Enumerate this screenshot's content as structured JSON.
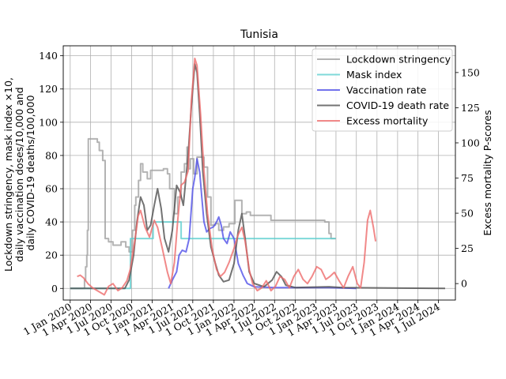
{
  "chart_data": {
    "type": "line",
    "title": "Tunisia",
    "ylabel": [
      "Lockdown stringency, mask index ×10,",
      "daily vaccination doses/10,000 and",
      "daily COVID-19 deaths/100,000"
    ],
    "y2label": "Excess mortality P-scores",
    "ylim": [
      -7,
      146
    ],
    "y2lim": [
      -11.7,
      169
    ],
    "xlim": [
      "2019-12-01",
      "2024-09-15"
    ],
    "y_ticks": [
      0,
      20,
      40,
      60,
      80,
      100,
      120,
      140
    ],
    "y2_ticks": [
      0,
      25,
      50,
      75,
      100,
      125,
      150
    ],
    "x_ticks": [
      {
        "date": "2020-01-01",
        "label": "1 Jan 2020"
      },
      {
        "date": "2020-04-01",
        "label": "1 Apr 2020"
      },
      {
        "date": "2020-07-01",
        "label": "1 Jul 2020"
      },
      {
        "date": "2020-10-01",
        "label": "1 Oct 2020"
      },
      {
        "date": "2021-01-01",
        "label": "1 Jan 2021"
      },
      {
        "date": "2021-04-01",
        "label": "1 Apr 2021"
      },
      {
        "date": "2021-07-01",
        "label": "1 Jul 2021"
      },
      {
        "date": "2021-10-01",
        "label": "1 Oct 2021"
      },
      {
        "date": "2022-01-01",
        "label": "1 Jan 2022"
      },
      {
        "date": "2022-04-01",
        "label": "1 Apr 2022"
      },
      {
        "date": "2022-07-01",
        "label": "1 Jul 2022"
      },
      {
        "date": "2022-10-01",
        "label": "1 Oct 2022"
      },
      {
        "date": "2023-01-01",
        "label": "1 Jan 2023"
      },
      {
        "date": "2023-04-01",
        "label": "1 Apr 2023"
      },
      {
        "date": "2023-07-01",
        "label": "1 Jul 2023"
      },
      {
        "date": "2023-10-01",
        "label": "1 Oct 2023"
      },
      {
        "date": "2024-01-01",
        "label": "1 Jan 2024"
      },
      {
        "date": "2024-04-01",
        "label": "1 Apr 2024"
      },
      {
        "date": "2024-07-01",
        "label": "1 Jul 2024"
      }
    ],
    "grid": true,
    "legend_position": "top-right",
    "series": [
      {
        "name": "Lockdown stringency",
        "color": "#a0a0a0",
        "axis": "left",
        "step": true,
        "points": [
          [
            "2020-01-01",
            0
          ],
          [
            "2020-03-01",
            0
          ],
          [
            "2020-03-05",
            5
          ],
          [
            "2020-03-10",
            13
          ],
          [
            "2020-03-15",
            20
          ],
          [
            "2020-03-18",
            35
          ],
          [
            "2020-03-22",
            90
          ],
          [
            "2020-05-01",
            88
          ],
          [
            "2020-05-10",
            83
          ],
          [
            "2020-05-25",
            77
          ],
          [
            "2020-06-05",
            30
          ],
          [
            "2020-06-20",
            28
          ],
          [
            "2020-07-10",
            26
          ],
          [
            "2020-08-15",
            28
          ],
          [
            "2020-09-05",
            25
          ],
          [
            "2020-09-20",
            22
          ],
          [
            "2020-10-05",
            35
          ],
          [
            "2020-10-15",
            50
          ],
          [
            "2020-10-20",
            55
          ],
          [
            "2020-11-01",
            65
          ],
          [
            "2020-11-10",
            75
          ],
          [
            "2020-11-20",
            70
          ],
          [
            "2020-12-10",
            66
          ],
          [
            "2020-12-25",
            71
          ],
          [
            "2021-02-20",
            72
          ],
          [
            "2021-03-10",
            69
          ],
          [
            "2021-03-20",
            60
          ],
          [
            "2021-04-10",
            45
          ],
          [
            "2021-04-25",
            55
          ],
          [
            "2021-05-10",
            70
          ],
          [
            "2021-05-25",
            75
          ],
          [
            "2021-06-05",
            85
          ],
          [
            "2021-06-12",
            72
          ],
          [
            "2021-06-20",
            78
          ],
          [
            "2021-07-05",
            69
          ],
          [
            "2021-07-20",
            79
          ],
          [
            "2021-08-20",
            73
          ],
          [
            "2021-09-05",
            55
          ],
          [
            "2021-09-20",
            38
          ],
          [
            "2021-10-10",
            39
          ],
          [
            "2021-10-25",
            35
          ],
          [
            "2021-11-15",
            37
          ],
          [
            "2021-12-10",
            39
          ],
          [
            "2022-01-05",
            53
          ],
          [
            "2022-02-05",
            45
          ],
          [
            "2022-02-25",
            46
          ],
          [
            "2022-03-15",
            44
          ],
          [
            "2022-06-15",
            41
          ],
          [
            "2023-02-10",
            40
          ],
          [
            "2023-03-01",
            33
          ],
          [
            "2023-03-10",
            30
          ],
          [
            "2023-03-31",
            30
          ]
        ]
      },
      {
        "name": "Mask index",
        "color": "#5fcfcf",
        "axis": "left",
        "step": true,
        "points": [
          [
            "2020-01-01",
            0
          ],
          [
            "2020-09-25",
            0
          ],
          [
            "2020-09-26",
            30
          ],
          [
            "2021-01-05",
            40
          ],
          [
            "2021-05-10",
            30
          ],
          [
            "2023-03-31",
            30
          ]
        ]
      },
      {
        "name": "Vaccination rate",
        "color": "#5050e8",
        "axis": "left",
        "points": [
          [
            "2021-03-15",
            0
          ],
          [
            "2021-04-01",
            5
          ],
          [
            "2021-04-20",
            10
          ],
          [
            "2021-05-01",
            20
          ],
          [
            "2021-05-15",
            23
          ],
          [
            "2021-06-01",
            22
          ],
          [
            "2021-06-15",
            30
          ],
          [
            "2021-07-01",
            60
          ],
          [
            "2021-07-10",
            67
          ],
          [
            "2021-07-20",
            78
          ],
          [
            "2021-08-01",
            70
          ],
          [
            "2021-08-10",
            55
          ],
          [
            "2021-08-20",
            40
          ],
          [
            "2021-09-01",
            34
          ],
          [
            "2021-09-15",
            36
          ],
          [
            "2021-10-01",
            37
          ],
          [
            "2021-10-15",
            40
          ],
          [
            "2021-10-25",
            43
          ],
          [
            "2021-11-05",
            38
          ],
          [
            "2021-11-15",
            30
          ],
          [
            "2021-12-01",
            27
          ],
          [
            "2021-12-15",
            34
          ],
          [
            "2022-01-01",
            30
          ],
          [
            "2022-01-20",
            15
          ],
          [
            "2022-02-10",
            8
          ],
          [
            "2022-03-01",
            3
          ],
          [
            "2022-04-01",
            1
          ],
          [
            "2022-07-01",
            0.5
          ],
          [
            "2023-03-01",
            0.5
          ],
          [
            "2023-07-01",
            0
          ]
        ]
      },
      {
        "name": "COVID-19 death rate",
        "color": "#505050",
        "axis": "left",
        "points": [
          [
            "2020-01-01",
            0
          ],
          [
            "2020-09-01",
            0
          ],
          [
            "2020-09-20",
            5
          ],
          [
            "2020-10-10",
            20
          ],
          [
            "2020-10-25",
            40
          ],
          [
            "2020-11-10",
            55
          ],
          [
            "2020-11-25",
            50
          ],
          [
            "2020-12-10",
            35
          ],
          [
            "2020-12-25",
            38
          ],
          [
            "2021-01-10",
            50
          ],
          [
            "2021-01-25",
            60
          ],
          [
            "2021-02-10",
            48
          ],
          [
            "2021-02-25",
            30
          ],
          [
            "2021-03-15",
            22
          ],
          [
            "2021-04-01",
            35
          ],
          [
            "2021-04-20",
            62
          ],
          [
            "2021-05-05",
            58
          ],
          [
            "2021-05-20",
            50
          ],
          [
            "2021-06-10",
            80
          ],
          [
            "2021-06-25",
            110
          ],
          [
            "2021-07-10",
            135
          ],
          [
            "2021-07-20",
            130
          ],
          [
            "2021-08-01",
            105
          ],
          [
            "2021-08-15",
            70
          ],
          [
            "2021-09-01",
            45
          ],
          [
            "2021-09-20",
            25
          ],
          [
            "2021-10-10",
            15
          ],
          [
            "2021-10-25",
            8
          ],
          [
            "2021-11-15",
            4
          ],
          [
            "2021-12-10",
            5
          ],
          [
            "2022-01-01",
            15
          ],
          [
            "2022-01-20",
            35
          ],
          [
            "2022-02-05",
            45
          ],
          [
            "2022-02-20",
            30
          ],
          [
            "2022-03-10",
            10
          ],
          [
            "2022-04-01",
            3
          ],
          [
            "2022-05-15",
            1
          ],
          [
            "2022-06-20",
            5
          ],
          [
            "2022-07-10",
            10
          ],
          [
            "2022-08-01",
            7
          ],
          [
            "2022-08-20",
            2
          ],
          [
            "2022-10-01",
            0.5
          ],
          [
            "2023-03-01",
            1
          ],
          [
            "2023-05-01",
            0.5
          ],
          [
            "2024-07-31",
            0
          ]
        ]
      },
      {
        "name": "Excess mortality",
        "color": "#ee6b6b",
        "axis": "right",
        "points": [
          [
            "2020-02-01",
            5
          ],
          [
            "2020-02-15",
            6
          ],
          [
            "2020-03-01",
            4
          ],
          [
            "2020-03-20",
            0
          ],
          [
            "2020-04-10",
            -3
          ],
          [
            "2020-05-01",
            -5
          ],
          [
            "2020-06-01",
            -8
          ],
          [
            "2020-06-20",
            -2
          ],
          [
            "2020-07-10",
            0
          ],
          [
            "2020-08-01",
            -5
          ],
          [
            "2020-08-20",
            -3
          ],
          [
            "2020-09-10",
            2
          ],
          [
            "2020-09-25",
            10
          ],
          [
            "2020-10-15",
            30
          ],
          [
            "2020-10-30",
            48
          ],
          [
            "2020-11-10",
            52
          ],
          [
            "2020-11-30",
            40
          ],
          [
            "2020-12-20",
            33
          ],
          [
            "2021-01-10",
            45
          ],
          [
            "2021-01-25",
            40
          ],
          [
            "2021-02-15",
            25
          ],
          [
            "2021-03-10",
            8
          ],
          [
            "2021-03-25",
            0
          ],
          [
            "2021-04-10",
            15
          ],
          [
            "2021-04-25",
            45
          ],
          [
            "2021-05-10",
            70
          ],
          [
            "2021-05-25",
            72
          ],
          [
            "2021-06-10",
            80
          ],
          [
            "2021-06-25",
            130
          ],
          [
            "2021-07-10",
            160
          ],
          [
            "2021-07-20",
            155
          ],
          [
            "2021-08-05",
            120
          ],
          [
            "2021-08-20",
            80
          ],
          [
            "2021-09-05",
            50
          ],
          [
            "2021-09-25",
            25
          ],
          [
            "2021-10-15",
            10
          ],
          [
            "2021-11-01",
            5
          ],
          [
            "2021-11-20",
            8
          ],
          [
            "2021-12-10",
            15
          ],
          [
            "2022-01-01",
            25
          ],
          [
            "2022-01-20",
            35
          ],
          [
            "2022-02-05",
            40
          ],
          [
            "2022-02-20",
            30
          ],
          [
            "2022-03-10",
            10
          ],
          [
            "2022-03-25",
            0
          ],
          [
            "2022-04-15",
            -5
          ],
          [
            "2022-05-05",
            -3
          ],
          [
            "2022-05-25",
            2
          ],
          [
            "2022-06-15",
            -5
          ],
          [
            "2022-07-05",
            -2
          ],
          [
            "2022-07-25",
            5
          ],
          [
            "2022-08-15",
            3
          ],
          [
            "2022-09-05",
            -3
          ],
          [
            "2022-09-25",
            5
          ],
          [
            "2022-10-15",
            10
          ],
          [
            "2022-11-05",
            3
          ],
          [
            "2022-11-25",
            0
          ],
          [
            "2022-12-15",
            5
          ],
          [
            "2023-01-05",
            12
          ],
          [
            "2023-01-25",
            10
          ],
          [
            "2023-02-15",
            3
          ],
          [
            "2023-03-05",
            5
          ],
          [
            "2023-03-25",
            8
          ],
          [
            "2023-04-15",
            2
          ],
          [
            "2023-05-05",
            -3
          ],
          [
            "2023-05-25",
            5
          ],
          [
            "2023-06-15",
            12
          ],
          [
            "2023-07-05",
            0
          ],
          [
            "2023-07-20",
            -3
          ],
          [
            "2023-08-05",
            15
          ],
          [
            "2023-08-20",
            45
          ],
          [
            "2023-09-01",
            52
          ],
          [
            "2023-09-15",
            40
          ],
          [
            "2023-09-25",
            30
          ]
        ]
      }
    ]
  }
}
